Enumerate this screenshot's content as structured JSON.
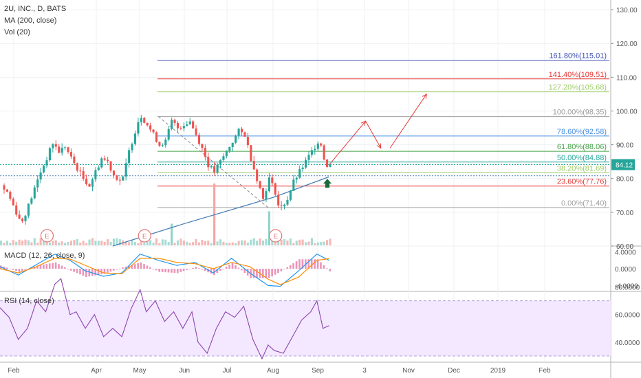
{
  "legend": {
    "symbol_line": "2U, INC., D, BATS",
    "ma_line": "MA (200, close)",
    "vol_line": "Vol (20)",
    "macd_line": "MACD (12, 26, close, 9)",
    "rsi_line": "RSI (14, close)"
  },
  "colors": {
    "up": "#26a69a",
    "down": "#ef5350",
    "ma": "#4a7fb5",
    "macd": "#2196f3",
    "signal": "#ff8c00",
    "rsi": "#8e44ad",
    "rsi_band": "#f3e8ff"
  },
  "chart_data": {
    "type": "candlestick",
    "symbol": "2U, INC.",
    "timeframe": "D",
    "exchange": "BATS",
    "last_price": 84.12,
    "last_price_label": "84.12",
    "x_ticks": [
      "Feb",
      "Apr",
      "May",
      "Jun",
      "Jul",
      "Aug",
      "Sep",
      "3",
      "Nov",
      "Dec",
      "2019",
      "Feb"
    ],
    "price_ylim": [
      60,
      130
    ],
    "price_ticks": [
      "130.00",
      "120.00",
      "110.00",
      "100.00",
      "90.00",
      "80.00",
      "70.00",
      "60.00"
    ],
    "price_tick_values": [
      130,
      120,
      110,
      100,
      90,
      80,
      70,
      60
    ],
    "close_path": [
      [
        0,
        78
      ],
      [
        2,
        76
      ],
      [
        4,
        72
      ],
      [
        6,
        68
      ],
      [
        7,
        67.5
      ],
      [
        9,
        72
      ],
      [
        11,
        77
      ],
      [
        13,
        82
      ],
      [
        15,
        86
      ],
      [
        17,
        90.5
      ],
      [
        19,
        88
      ],
      [
        21,
        89.5
      ],
      [
        23,
        86
      ],
      [
        25,
        83
      ],
      [
        27,
        80
      ],
      [
        29,
        78
      ],
      [
        31,
        82
      ],
      [
        33,
        86
      ],
      [
        35,
        85
      ],
      [
        37,
        81
      ],
      [
        39,
        79.5
      ],
      [
        40,
        80
      ],
      [
        42,
        88
      ],
      [
        44,
        94
      ],
      [
        45,
        97
      ],
      [
        46,
        98.5
      ],
      [
        48,
        96
      ],
      [
        50,
        93
      ],
      [
        52,
        90
      ],
      [
        54,
        91
      ],
      [
        56,
        97
      ],
      [
        58,
        95
      ],
      [
        60,
        96
      ],
      [
        62,
        97
      ],
      [
        64,
        93
      ],
      [
        66,
        89
      ],
      [
        68,
        84
      ],
      [
        70,
        82
      ],
      [
        72,
        85
      ],
      [
        74,
        88
      ],
      [
        76,
        91
      ],
      [
        78,
        94
      ],
      [
        80,
        93
      ],
      [
        82,
        86
      ],
      [
        84,
        80
      ],
      [
        86,
        74
      ],
      [
        88,
        80
      ],
      [
        90,
        76
      ],
      [
        91,
        72
      ],
      [
        92,
        71.4
      ],
      [
        94,
        74
      ],
      [
        96,
        79
      ],
      [
        98,
        82
      ],
      [
        100,
        85
      ],
      [
        102,
        88
      ],
      [
        104,
        91
      ],
      [
        105,
        90
      ],
      [
        106,
        86
      ],
      [
        107,
        84
      ],
      [
        108,
        84.12
      ]
    ],
    "ma200_path": [
      [
        37,
        60
      ],
      [
        60,
        66.5
      ],
      [
        90,
        74.5
      ],
      [
        108,
        80.5
      ]
    ],
    "volume_spikes": [
      {
        "x": 56,
        "rel": 0.35,
        "dir": "up",
        "label": ""
      },
      {
        "x": 70,
        "rel": 1.0,
        "dir": "down",
        "label": ""
      },
      {
        "x": 88,
        "rel": 0.55,
        "dir": "up",
        "label": ""
      }
    ],
    "earnings_markers": [
      {
        "x": 15,
        "label": "E"
      },
      {
        "x": 47,
        "label": "E"
      },
      {
        "x": 90,
        "label": "E"
      }
    ],
    "fibonacci": {
      "start_x": 52,
      "end_x": 200,
      "levels": [
        {
          "ratio": "161.80%",
          "price": 115.01,
          "label": "161.80%(115.01)",
          "color": "#3f51b5"
        },
        {
          "ratio": "141.40%",
          "price": 109.51,
          "label": "141.40%(109.51)",
          "color": "#e53935"
        },
        {
          "ratio": "127.20%",
          "price": 105.68,
          "label": "127.20%(105.68)",
          "color": "#9ccc65"
        },
        {
          "ratio": "100.00%",
          "price": 98.35,
          "label": "100.00%(98.35)",
          "color": "#9e9e9e"
        },
        {
          "ratio": "78.60%",
          "price": 92.58,
          "label": "78.60%(92.58)",
          "color": "#4a90e2"
        },
        {
          "ratio": "61.80%",
          "price": 88.06,
          "label": "61.80%(88.06)",
          "color": "#43a047"
        },
        {
          "ratio": "50.00%",
          "price": 84.88,
          "label": "50.00%(84.88)",
          "color": "#26a69a"
        },
        {
          "ratio": "38.20%",
          "price": 81.69,
          "label": "38.20%(81.69)",
          "color": "#9ccc65"
        },
        {
          "ratio": "23.60%",
          "price": 77.76,
          "label": "23.60%(77.76)",
          "color": "#e53935"
        },
        {
          "ratio": "0.00%",
          "price": 71.4,
          "label": "0.00%(71.40)",
          "color": "#9e9e9e"
        }
      ]
    },
    "projection_arrows": [
      [
        [
          108,
          84
        ],
        [
          120,
          97
        ]
      ],
      [
        [
          120,
          97
        ],
        [
          125,
          89
        ]
      ],
      [
        [
          128,
          89
        ],
        [
          140,
          105
        ]
      ]
    ],
    "macd_ylim": [
      -6,
      6
    ],
    "macd_ticks": [
      "4.0000",
      "0.0000",
      "-4.0000"
    ],
    "macd_tick_values": [
      4,
      0,
      -4
    ],
    "rsi_ylim": [
      22,
      88
    ],
    "rsi_ticks": [
      "80.0000",
      "60.0000",
      "40.0000"
    ],
    "rsi_tick_values": [
      80,
      60,
      40
    ],
    "rsi_band": [
      30,
      70
    ],
    "rsi_path": [
      [
        0,
        65
      ],
      [
        3,
        58
      ],
      [
        6,
        42
      ],
      [
        9,
        50
      ],
      [
        12,
        70
      ],
      [
        15,
        62
      ],
      [
        18,
        82
      ],
      [
        20,
        86
      ],
      [
        23,
        60
      ],
      [
        25,
        62
      ],
      [
        28,
        50
      ],
      [
        31,
        60
      ],
      [
        34,
        44
      ],
      [
        37,
        50
      ],
      [
        40,
        44
      ],
      [
        43,
        64
      ],
      [
        46,
        78
      ],
      [
        48,
        62
      ],
      [
        51,
        70
      ],
      [
        54,
        55
      ],
      [
        57,
        62
      ],
      [
        60,
        50
      ],
      [
        63,
        62
      ],
      [
        65,
        40
      ],
      [
        68,
        32
      ],
      [
        71,
        50
      ],
      [
        74,
        62
      ],
      [
        77,
        58
      ],
      [
        80,
        66
      ],
      [
        83,
        42
      ],
      [
        86,
        28
      ],
      [
        88,
        38
      ],
      [
        90,
        34
      ],
      [
        93,
        32
      ],
      [
        96,
        44
      ],
      [
        99,
        56
      ],
      [
        102,
        62
      ],
      [
        104,
        70
      ],
      [
        106,
        50
      ],
      [
        108,
        52
      ]
    ],
    "macd_path": [
      [
        0,
        0.5
      ],
      [
        6,
        -1.5
      ],
      [
        12,
        1
      ],
      [
        18,
        3.5
      ],
      [
        23,
        2
      ],
      [
        28,
        -0.5
      ],
      [
        34,
        -1.8
      ],
      [
        40,
        -1
      ],
      [
        46,
        3.5
      ],
      [
        52,
        2
      ],
      [
        58,
        0.8
      ],
      [
        64,
        1.5
      ],
      [
        70,
        -1
      ],
      [
        76,
        2.5
      ],
      [
        82,
        -1
      ],
      [
        88,
        -4
      ],
      [
        92,
        -4.2
      ],
      [
        98,
        -0.5
      ],
      [
        104,
        3.5
      ],
      [
        108,
        2
      ]
    ],
    "signal_path": [
      [
        0,
        0
      ],
      [
        6,
        -1
      ],
      [
        12,
        0.5
      ],
      [
        18,
        2.5
      ],
      [
        23,
        2.3
      ],
      [
        28,
        0.8
      ],
      [
        34,
        -1
      ],
      [
        40,
        -1.2
      ],
      [
        46,
        2.5
      ],
      [
        52,
        2.5
      ],
      [
        58,
        1.5
      ],
      [
        64,
        1.2
      ],
      [
        70,
        0
      ],
      [
        76,
        1.5
      ],
      [
        82,
        0.5
      ],
      [
        88,
        -2.5
      ],
      [
        92,
        -3.8
      ],
      [
        98,
        -2
      ],
      [
        104,
        2
      ],
      [
        108,
        2.4
      ]
    ]
  }
}
